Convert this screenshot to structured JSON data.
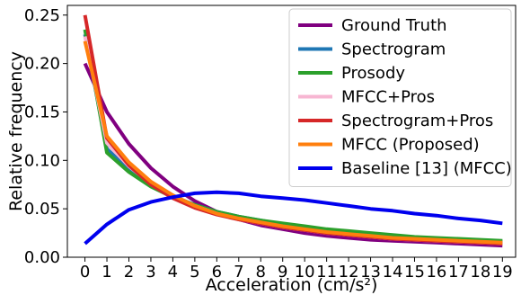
{
  "chart_data": {
    "type": "line",
    "title": "",
    "xlabel": "Acceleration (cm/s²)",
    "ylabel": "Relative frequency",
    "x": [
      0,
      1,
      2,
      3,
      4,
      5,
      6,
      7,
      8,
      9,
      10,
      11,
      12,
      13,
      14,
      15,
      16,
      17,
      18,
      19
    ],
    "xlim": [
      -0.8,
      19.6
    ],
    "ylim": [
      0,
      0.26
    ],
    "yticks": [
      0.0,
      0.05,
      0.1,
      0.15,
      0.2,
      0.25
    ],
    "ytick_labels": [
      "0.00",
      "0.05",
      "0.10",
      "0.15",
      "0.20",
      "0.25"
    ],
    "grid": false,
    "legend_position": "upper right",
    "series": [
      {
        "name": "Ground Truth",
        "color": "#800080",
        "values": [
          0.2,
          0.15,
          0.117,
          0.092,
          0.073,
          0.058,
          0.047,
          0.039,
          0.033,
          0.029,
          0.025,
          0.022,
          0.02,
          0.018,
          0.017,
          0.016,
          0.015,
          0.014,
          0.013,
          0.012
        ]
      },
      {
        "name": "Spectrogram",
        "color": "#1f77b4",
        "values": [
          0.23,
          0.112,
          0.09,
          0.074,
          0.063,
          0.054,
          0.047,
          0.042,
          0.038,
          0.034,
          0.031,
          0.028,
          0.026,
          0.024,
          0.022,
          0.02,
          0.019,
          0.018,
          0.017,
          0.016
        ]
      },
      {
        "name": "Prosody",
        "color": "#2ca02c",
        "values": [
          0.235,
          0.108,
          0.088,
          0.073,
          0.062,
          0.054,
          0.047,
          0.042,
          0.038,
          0.035,
          0.032,
          0.029,
          0.027,
          0.025,
          0.023,
          0.021,
          0.02,
          0.019,
          0.018,
          0.017
        ]
      },
      {
        "name": "MFCC+Pros",
        "color": "#f7b6d2",
        "values": [
          0.228,
          0.118,
          0.094,
          0.076,
          0.063,
          0.053,
          0.045,
          0.039,
          0.035,
          0.031,
          0.028,
          0.025,
          0.023,
          0.021,
          0.019,
          0.018,
          0.017,
          0.016,
          0.015,
          0.014
        ]
      },
      {
        "name": "Spectrogram+Pros",
        "color": "#d62728",
        "values": [
          0.25,
          0.123,
          0.095,
          0.075,
          0.061,
          0.051,
          0.044,
          0.039,
          0.035,
          0.031,
          0.028,
          0.025,
          0.023,
          0.021,
          0.019,
          0.018,
          0.017,
          0.016,
          0.015,
          0.014
        ]
      },
      {
        "name": "MFCC (Proposed)",
        "color": "#ff7f0e",
        "values": [
          0.223,
          0.125,
          0.098,
          0.078,
          0.064,
          0.053,
          0.045,
          0.04,
          0.036,
          0.032,
          0.029,
          0.026,
          0.024,
          0.022,
          0.02,
          0.019,
          0.018,
          0.017,
          0.016,
          0.015
        ]
      },
      {
        "name": "Baseline [13]  (MFCC)",
        "color": "#0000ee",
        "values": [
          0.014,
          0.034,
          0.049,
          0.057,
          0.062,
          0.066,
          0.067,
          0.066,
          0.063,
          0.061,
          0.059,
          0.056,
          0.053,
          0.05,
          0.048,
          0.045,
          0.043,
          0.04,
          0.038,
          0.035
        ]
      }
    ]
  }
}
